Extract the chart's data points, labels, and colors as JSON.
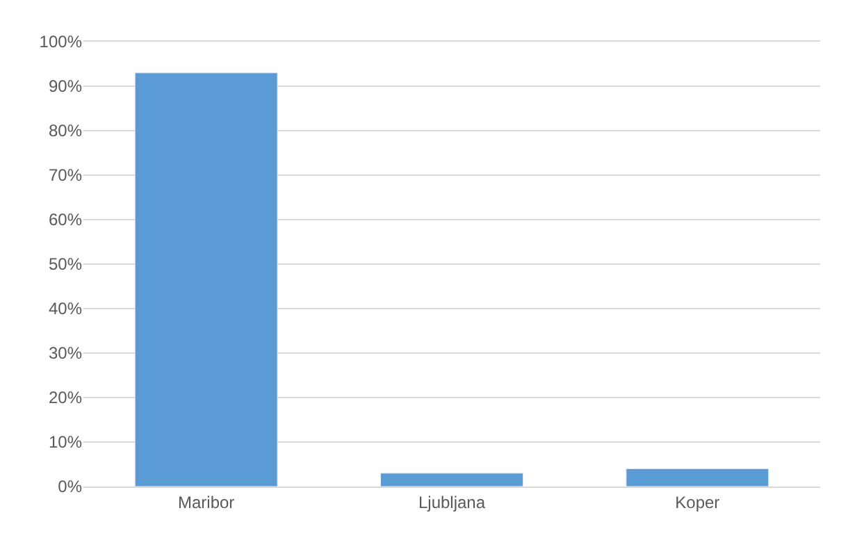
{
  "chart_data": {
    "type": "bar",
    "categories": [
      "Maribor",
      "Ljubljana",
      "Koper"
    ],
    "values": [
      93,
      3,
      4
    ],
    "color": "#5b9bd5",
    "ylim": [
      0,
      100
    ],
    "yticks": [
      {
        "value": 0,
        "label": "0%"
      },
      {
        "value": 10,
        "label": "10%"
      },
      {
        "value": 20,
        "label": "20%"
      },
      {
        "value": 30,
        "label": "30%"
      },
      {
        "value": 40,
        "label": "40%"
      },
      {
        "value": 50,
        "label": "50%"
      },
      {
        "value": 60,
        "label": "60%"
      },
      {
        "value": 70,
        "label": "70%"
      },
      {
        "value": 80,
        "label": "80%"
      },
      {
        "value": 90,
        "label": "90%"
      },
      {
        "value": 100,
        "label": "100%"
      }
    ],
    "grid": "y"
  }
}
